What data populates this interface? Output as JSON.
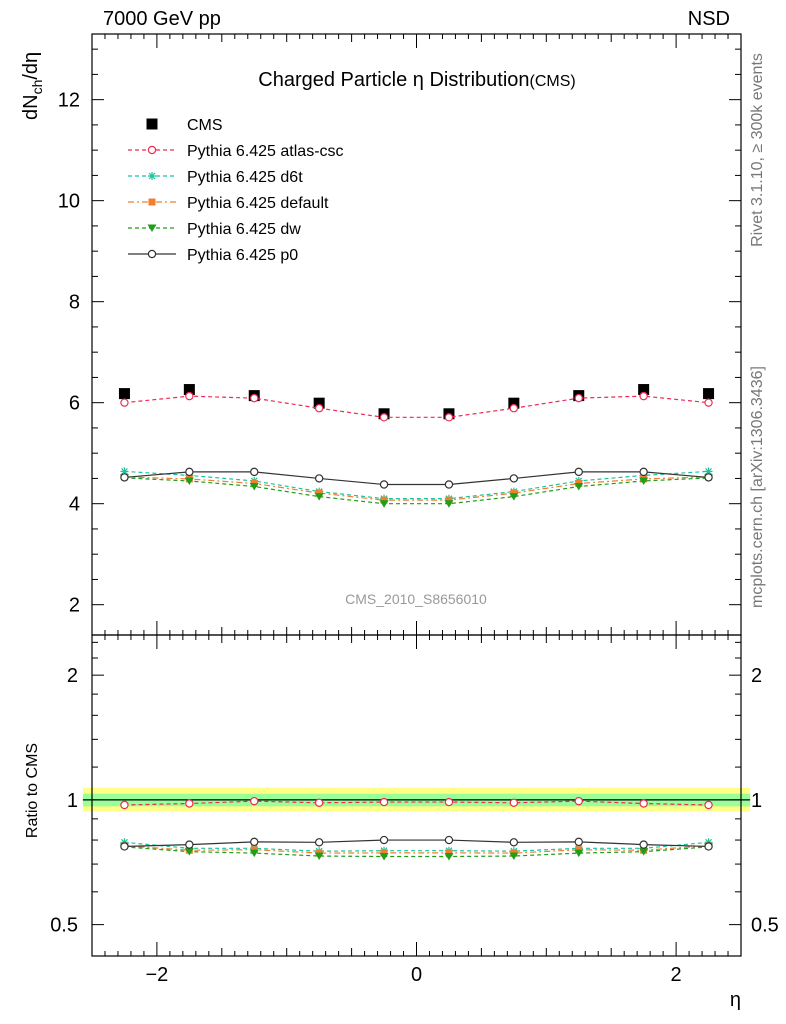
{
  "header": {
    "energy": "7000 GeV pp",
    "process": "NSD"
  },
  "side_labels": {
    "rivet": "Rivet 3.1.10, ≥ 300k events",
    "mcplots": "mcplots.cern.ch [arXiv:1306.3436]"
  },
  "chart_data": [
    {
      "type": "line",
      "title": "Charged Particle η Distribution",
      "title_suffix": "(CMS)",
      "analysis_label": "CMS_2010_S8656010",
      "ylabel_main": "dN",
      "ylabel_sub": "ch",
      "ylabel_tail": "/dη",
      "ylim": [
        1.4,
        13.3
      ],
      "yticks": [
        2,
        4,
        6,
        8,
        10,
        12
      ],
      "xlim": [
        -2.5,
        2.5
      ],
      "x": [
        -2.25,
        -1.75,
        -1.25,
        -0.75,
        -0.25,
        0.25,
        0.75,
        1.25,
        1.75,
        2.25
      ],
      "legend_placement": "top-left",
      "series": [
        {
          "name": "CMS",
          "style": "data",
          "color": "#000000",
          "values": [
            6.18,
            6.26,
            6.14,
            5.99,
            5.78,
            5.78,
            5.99,
            6.14,
            6.26,
            6.18
          ]
        },
        {
          "name": "Pythia 6.425 atlas-csc",
          "color": "#ee2a55",
          "marker": "open-circle",
          "dash": "4,3",
          "values": [
            6.0,
            6.13,
            6.09,
            5.89,
            5.71,
            5.71,
            5.89,
            6.09,
            6.13,
            6.0
          ]
        },
        {
          "name": "Pythia 6.425 d6t",
          "color": "#19c3a0",
          "marker": "star",
          "dash": "4,3",
          "values": [
            4.64,
            4.56,
            4.45,
            4.24,
            4.1,
            4.1,
            4.24,
            4.45,
            4.56,
            4.64
          ]
        },
        {
          "name": "Pythia 6.425 default",
          "color": "#f07f30",
          "marker": "square",
          "dash": "6,3,2,3",
          "values": [
            4.53,
            4.49,
            4.4,
            4.21,
            4.07,
            4.07,
            4.21,
            4.4,
            4.49,
            4.53
          ]
        },
        {
          "name": "Pythia 6.425 dw",
          "color": "#1f9e18",
          "marker": "triangle-down",
          "dash": "4,3",
          "values": [
            4.51,
            4.45,
            4.34,
            4.14,
            4.0,
            4.0,
            4.14,
            4.34,
            4.45,
            4.51
          ]
        },
        {
          "name": "Pythia 6.425 p0",
          "color": "#333333",
          "marker": "open-circle",
          "dash": "",
          "values": [
            4.52,
            4.63,
            4.63,
            4.5,
            4.38,
            4.38,
            4.5,
            4.63,
            4.63,
            4.52
          ]
        }
      ]
    },
    {
      "type": "line",
      "ylabel": "Ratio to CMS",
      "xlabel": "η",
      "ylim": [
        0.42,
        2.5
      ],
      "yscale": "log",
      "yticks": [
        0.5,
        1,
        2
      ],
      "xticks": [
        -2,
        0,
        2
      ],
      "band_outer": [
        0.94,
        1.07
      ],
      "band_inner": [
        0.965,
        1.035
      ],
      "band_colors": {
        "outer": "#ffff88",
        "inner": "#99ff99"
      },
      "series": [
        {
          "name": "Pythia 6.425 atlas-csc",
          "color": "#ee2a55",
          "marker": "open-circle",
          "dash": "4,3",
          "values": [
            0.972,
            0.98,
            0.993,
            0.984,
            0.988,
            0.988,
            0.984,
            0.993,
            0.98,
            0.972
          ]
        },
        {
          "name": "Pythia 6.425 d6t",
          "color": "#19c3a0",
          "marker": "star",
          "dash": "4,3",
          "values": [
            0.79,
            0.764,
            0.764,
            0.752,
            0.754,
            0.754,
            0.752,
            0.764,
            0.764,
            0.79
          ]
        },
        {
          "name": "Pythia 6.425 default",
          "color": "#f07f30",
          "marker": "square",
          "dash": "6,3,2,3",
          "values": [
            0.775,
            0.756,
            0.758,
            0.744,
            0.745,
            0.745,
            0.744,
            0.758,
            0.756,
            0.775
          ]
        },
        {
          "name": "Pythia 6.425 dw",
          "color": "#1f9e18",
          "marker": "triangle-down",
          "dash": "4,3",
          "values": [
            0.77,
            0.75,
            0.744,
            0.732,
            0.73,
            0.73,
            0.732,
            0.744,
            0.75,
            0.77
          ]
        },
        {
          "name": "Pythia 6.425 p0",
          "color": "#333333",
          "marker": "open-circle",
          "dash": "",
          "values": [
            0.772,
            0.78,
            0.792,
            0.79,
            0.8,
            0.8,
            0.79,
            0.792,
            0.78,
            0.772
          ]
        }
      ]
    }
  ]
}
